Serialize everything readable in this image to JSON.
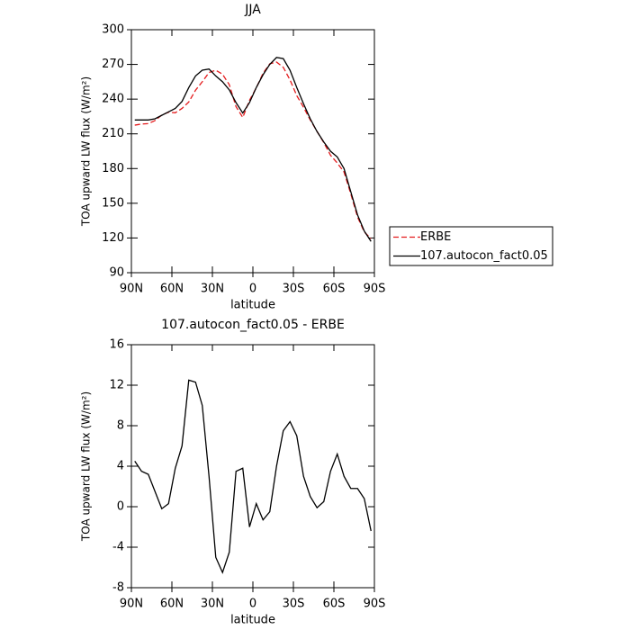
{
  "chart_data": [
    {
      "type": "line",
      "title": "JJA",
      "xlabel": "latitude",
      "ylabel": "TOA upward LW flux (W/m²)",
      "x": [
        87.5,
        82.5,
        77.5,
        72.5,
        67.5,
        62.5,
        57.5,
        52.5,
        47.5,
        42.5,
        37.5,
        32.5,
        27.5,
        22.5,
        17.5,
        12.5,
        7.5,
        2.5,
        -2.5,
        -7.5,
        -12.5,
        -17.5,
        -22.5,
        -27.5,
        -32.5,
        -37.5,
        -42.5,
        -47.5,
        -52.5,
        -57.5,
        -62.5,
        -67.5,
        -72.5,
        -77.5,
        -82.5,
        -87.5
      ],
      "series": [
        {
          "name": "ERBE",
          "color": "#e41a1c",
          "dashed": true,
          "values": [
            217.5,
            218.5,
            218.8,
            221.5,
            226.2,
            228.7,
            228.2,
            232,
            237.5,
            247.7,
            255,
            263,
            265,
            261.5,
            252.5,
            233.5,
            224.2,
            239,
            249.7,
            262.3,
            270.5,
            272,
            267.5,
            256.6,
            243,
            233,
            222,
            212.1,
            202.5,
            191.5,
            184.8,
            177,
            158.2,
            138.2,
            125.2,
            119.4
          ]
        },
        {
          "name": "107.autocon_fact0.05",
          "color": "#000000",
          "dashed": false,
          "values": [
            222,
            222,
            222,
            223,
            226,
            229,
            232,
            238,
            250,
            260,
            265,
            266,
            260,
            255,
            248,
            237,
            228,
            237,
            250,
            261,
            270,
            276,
            275,
            265,
            250,
            236,
            223,
            212,
            203,
            195,
            190,
            180,
            160,
            140,
            126,
            117
          ]
        }
      ],
      "xlim": [
        90,
        -90
      ],
      "xticks": [
        {
          "value": 90,
          "label": "90N"
        },
        {
          "value": 60,
          "label": "60N"
        },
        {
          "value": 30,
          "label": "30N"
        },
        0,
        {
          "value": -30,
          "label": "30S"
        },
        {
          "value": -60,
          "label": "60S"
        },
        {
          "value": -90,
          "label": "90S"
        }
      ],
      "ylim": [
        90,
        300
      ],
      "yticks": [
        90,
        120,
        150,
        180,
        210,
        240,
        270,
        300
      ],
      "legend": "right"
    },
    {
      "type": "line",
      "title": "107.autocon_fact0.05 - ERBE",
      "xlabel": "latitude",
      "ylabel": "TOA upward LW flux (W/m²)",
      "x": [
        87.5,
        82.5,
        77.5,
        72.5,
        67.5,
        62.5,
        57.5,
        52.5,
        47.5,
        42.5,
        37.5,
        32.5,
        27.5,
        22.5,
        17.5,
        12.5,
        7.5,
        2.5,
        -2.5,
        -7.5,
        -12.5,
        -17.5,
        -22.5,
        -27.5,
        -32.5,
        -37.5,
        -42.5,
        -47.5,
        -52.5,
        -57.5,
        -62.5,
        -67.5,
        -72.5,
        -77.5,
        -82.5,
        -87.5
      ],
      "series": [
        {
          "color": "#000000",
          "dashed": false,
          "values": [
            4.5,
            3.5,
            3.2,
            1.5,
            -0.2,
            0.3,
            3.8,
            6,
            12.5,
            12.3,
            10,
            3,
            -5,
            -6.5,
            -4.5,
            3.5,
            3.8,
            -2,
            0.3,
            -1.3,
            -0.5,
            4,
            7.5,
            8.4,
            7,
            3,
            1,
            -0.1,
            0.5,
            3.5,
            5.2,
            3,
            1.8,
            1.8,
            0.8,
            -2.4
          ]
        }
      ],
      "xlim": [
        90,
        -90
      ],
      "xticks": [
        {
          "value": 90,
          "label": "90N"
        },
        {
          "value": 60,
          "label": "60N"
        },
        {
          "value": 30,
          "label": "30N"
        },
        0,
        {
          "value": -30,
          "label": "30S"
        },
        {
          "value": -60,
          "label": "60S"
        },
        {
          "value": -90,
          "label": "90S"
        }
      ],
      "ylim": [
        -8,
        16
      ],
      "yticks": [
        -8,
        -4,
        0,
        4,
        8,
        12,
        16
      ]
    }
  ]
}
